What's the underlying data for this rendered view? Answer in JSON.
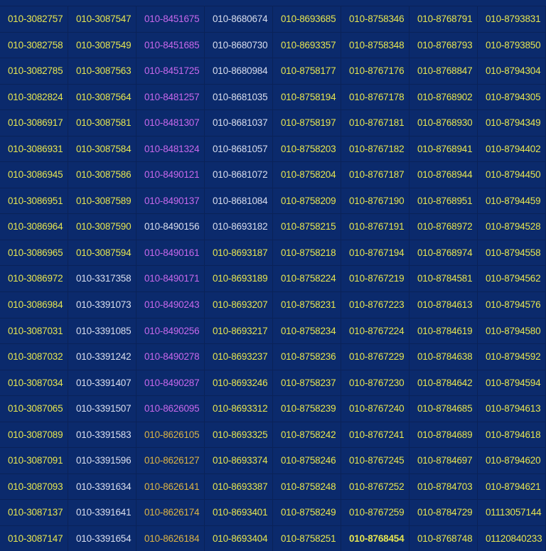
{
  "colors": {
    "background": "#0b2a6c",
    "y": "#e6e650",
    "p": "#c868ec",
    "w": "#dadfee",
    "o": "#dcb444"
  },
  "columns": [
    {
      "color_default": "y",
      "items": [
        "010-3082757",
        "010-3082758",
        "010-3082785",
        "010-3082824",
        "010-3086917",
        "010-3086931",
        "010-3086945",
        "010-3086951",
        "010-3086964",
        "010-3086965",
        "010-3086972",
        "010-3086984",
        "010-3087031",
        "010-3087032",
        "010-3087034",
        "010-3087065",
        "010-3087089",
        "010-3087091",
        "010-3087093",
        "010-3087137",
        "010-3087147"
      ],
      "colors": [
        "y",
        "y",
        "y",
        "y",
        "y",
        "y",
        "y",
        "y",
        "y",
        "y",
        "y",
        "y",
        "y",
        "y",
        "y",
        "y",
        "y",
        "y",
        "y",
        "y",
        "y"
      ]
    },
    {
      "items": [
        "010-3087547",
        "010-3087549",
        "010-3087563",
        "010-3087564",
        "010-3087581",
        "010-3087584",
        "010-3087586",
        "010-3087589",
        "010-3087590",
        "010-3087594",
        "010-3317358",
        "010-3391073",
        "010-3391085",
        "010-3391242",
        "010-3391407",
        "010-3391507",
        "010-3391583",
        "010-3391596",
        "010-3391634",
        "010-3391641",
        "010-3391654"
      ],
      "colors": [
        "y",
        "y",
        "y",
        "y",
        "y",
        "y",
        "y",
        "y",
        "y",
        "y",
        "w",
        "w",
        "w",
        "w",
        "w",
        "w",
        "w",
        "w",
        "w",
        "w",
        "w"
      ]
    },
    {
      "items": [
        "010-8451675",
        "010-8451685",
        "010-8451725",
        "010-8481257",
        "010-8481307",
        "010-8481324",
        "010-8490121",
        "010-8490137",
        "010-8490156",
        "010-8490161",
        "010-8490171",
        "010-8490243",
        "010-8490256",
        "010-8490278",
        "010-8490287",
        "010-8626095",
        "010-8626105",
        "010-8626127",
        "010-8626141",
        "010-8626174",
        "010-8626184"
      ],
      "colors": [
        "p",
        "p",
        "p",
        "p",
        "p",
        "p",
        "p",
        "p",
        "w",
        "p",
        "p",
        "p",
        "p",
        "p",
        "p",
        "p",
        "o",
        "o",
        "o",
        "o",
        "o"
      ]
    },
    {
      "items": [
        "010-8680674",
        "010-8680730",
        "010-8680984",
        "010-8681035",
        "010-8681037",
        "010-8681057",
        "010-8681072",
        "010-8681084",
        "010-8693182",
        "010-8693187",
        "010-8693189",
        "010-8693207",
        "010-8693217",
        "010-8693237",
        "010-8693246",
        "010-8693312",
        "010-8693325",
        "010-8693374",
        "010-8693387",
        "010-8693401",
        "010-8693404"
      ],
      "colors": [
        "w",
        "w",
        "w",
        "w",
        "w",
        "w",
        "w",
        "w",
        "w",
        "y",
        "y",
        "y",
        "y",
        "y",
        "y",
        "y",
        "y",
        "y",
        "y",
        "y",
        "y"
      ]
    },
    {
      "items": [
        "010-8693685",
        "010-8693357",
        "010-8758177",
        "010-8758194",
        "010-8758197",
        "010-8758203",
        "010-8758204",
        "010-8758209",
        "010-8758215",
        "010-8758218",
        "010-8758224",
        "010-8758231",
        "010-8758234",
        "010-8758236",
        "010-8758237",
        "010-8758239",
        "010-8758242",
        "010-8758246",
        "010-8758248",
        "010-8758249",
        "010-8758251"
      ],
      "colors": [
        "y",
        "y",
        "y",
        "y",
        "y",
        "y",
        "y",
        "y",
        "y",
        "y",
        "y",
        "y",
        "y",
        "y",
        "y",
        "y",
        "y",
        "y",
        "y",
        "y",
        "y"
      ]
    },
    {
      "items": [
        "010-8758346",
        "010-8758348",
        "010-8767176",
        "010-8767178",
        "010-8767181",
        "010-8767182",
        "010-8767187",
        "010-8767190",
        "010-8767191",
        "010-8767194",
        "010-8767219",
        "010-8767223",
        "010-8767224",
        "010-8767229",
        "010-8767230",
        "010-8767240",
        "010-8767241",
        "010-8767245",
        "010-8767252",
        "010-8767259",
        "010-8768454"
      ],
      "colors": [
        "y",
        "y",
        "y",
        "y",
        "y",
        "y",
        "y",
        "y",
        "y",
        "y",
        "y",
        "y",
        "y",
        "y",
        "y",
        "y",
        "y",
        "y",
        "y",
        "y",
        "y"
      ],
      "bold_rows": [
        20
      ]
    },
    {
      "items": [
        "010-8768791",
        "010-8768793",
        "010-8768847",
        "010-8768902",
        "010-8768930",
        "010-8768941",
        "010-8768944",
        "010-8768951",
        "010-8768972",
        "010-8768974",
        "010-8784581",
        "010-8784613",
        "010-8784619",
        "010-8784638",
        "010-8784642",
        "010-8784685",
        "010-8784689",
        "010-8784697",
        "010-8784703",
        "010-8784729",
        "010-8768748"
      ],
      "colors": [
        "y",
        "y",
        "y",
        "y",
        "y",
        "y",
        "y",
        "y",
        "y",
        "y",
        "y",
        "y",
        "y",
        "y",
        "y",
        "y",
        "y",
        "y",
        "y",
        "y",
        "y"
      ]
    },
    {
      "items": [
        "010-8793831",
        "010-8793850",
        "010-8794304",
        "010-8794305",
        "010-8794349",
        "010-8794402",
        "010-8794450",
        "010-8794459",
        "010-8794528",
        "010-8794558",
        "010-8794562",
        "010-8794576",
        "010-8794580",
        "010-8794592",
        "010-8794594",
        "010-8794613",
        "010-8794618",
        "010-8794620",
        "010-8794621",
        "01113057144",
        "01120840233"
      ],
      "colors": [
        "y",
        "y",
        "y",
        "y",
        "y",
        "y",
        "y",
        "y",
        "y",
        "y",
        "y",
        "y",
        "y",
        "y",
        "y",
        "y",
        "y",
        "y",
        "y",
        "y",
        "y"
      ]
    }
  ]
}
